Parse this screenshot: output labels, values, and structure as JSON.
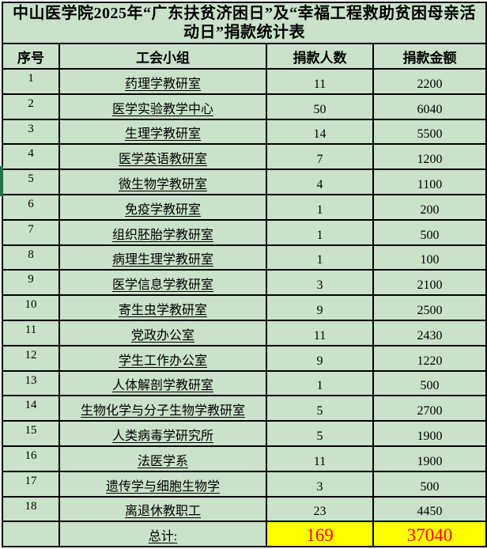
{
  "title": "中山医学院2025年“广东扶贫济困日”及“幸福工程救助贫困母亲活动日”捐款统计表",
  "table": {
    "columns": [
      "序号",
      "工会小组",
      "捐款人数",
      "捐款金额"
    ],
    "rows": [
      {
        "no": "1",
        "group": "药理学教研室",
        "donors": "11",
        "amount": "2200"
      },
      {
        "no": "2",
        "group": "医学实验教学中心",
        "donors": "50",
        "amount": "6040"
      },
      {
        "no": "3",
        "group": "生理学教研室",
        "donors": "14",
        "amount": "5500"
      },
      {
        "no": "4",
        "group": "医学英语教研室",
        "donors": "7",
        "amount": "1200"
      },
      {
        "no": "5",
        "group": "微生物学教研室",
        "donors": "4",
        "amount": "1100"
      },
      {
        "no": "6",
        "group": "免疫学教研室",
        "donors": "1",
        "amount": "200"
      },
      {
        "no": "7",
        "group": "组织胚胎学教研室",
        "donors": "1",
        "amount": "500"
      },
      {
        "no": "8",
        "group": "病理生理学教研室",
        "donors": "1",
        "amount": "100"
      },
      {
        "no": "9",
        "group": "医学信息学教研室",
        "donors": "3",
        "amount": "2100"
      },
      {
        "no": "10",
        "group": "寄生虫学教研室",
        "donors": "9",
        "amount": "2500"
      },
      {
        "no": "11",
        "group": "党政办公室",
        "donors": "11",
        "amount": "2430"
      },
      {
        "no": "12",
        "group": "学生工作办公室",
        "donors": "9",
        "amount": "1220"
      },
      {
        "no": "13",
        "group": "人体解剖学教研室",
        "donors": "1",
        "amount": "500"
      },
      {
        "no": "14",
        "group": "生物化学与分子生物学教研室",
        "donors": "5",
        "amount": "2700"
      },
      {
        "no": "15",
        "group": "人类病毒学研究所",
        "donors": "5",
        "amount": "1900"
      },
      {
        "no": "16",
        "group": "法医学系",
        "donors": "11",
        "amount": "1900"
      },
      {
        "no": "17",
        "group": "遗传学与细胞生物学",
        "donors": "3",
        "amount": "500"
      },
      {
        "no": "18",
        "group": "离退休教职工",
        "donors": "23",
        "amount": "4450"
      }
    ],
    "total": {
      "label": "总计:",
      "donors": "169",
      "amount": "37040"
    }
  },
  "colors": {
    "cell_bg": "#c9e2c9",
    "border_color": "#000000",
    "total_bg": "#ffff00",
    "total_text": "#ff0000",
    "marker": "#217346",
    "text": "#000000"
  }
}
